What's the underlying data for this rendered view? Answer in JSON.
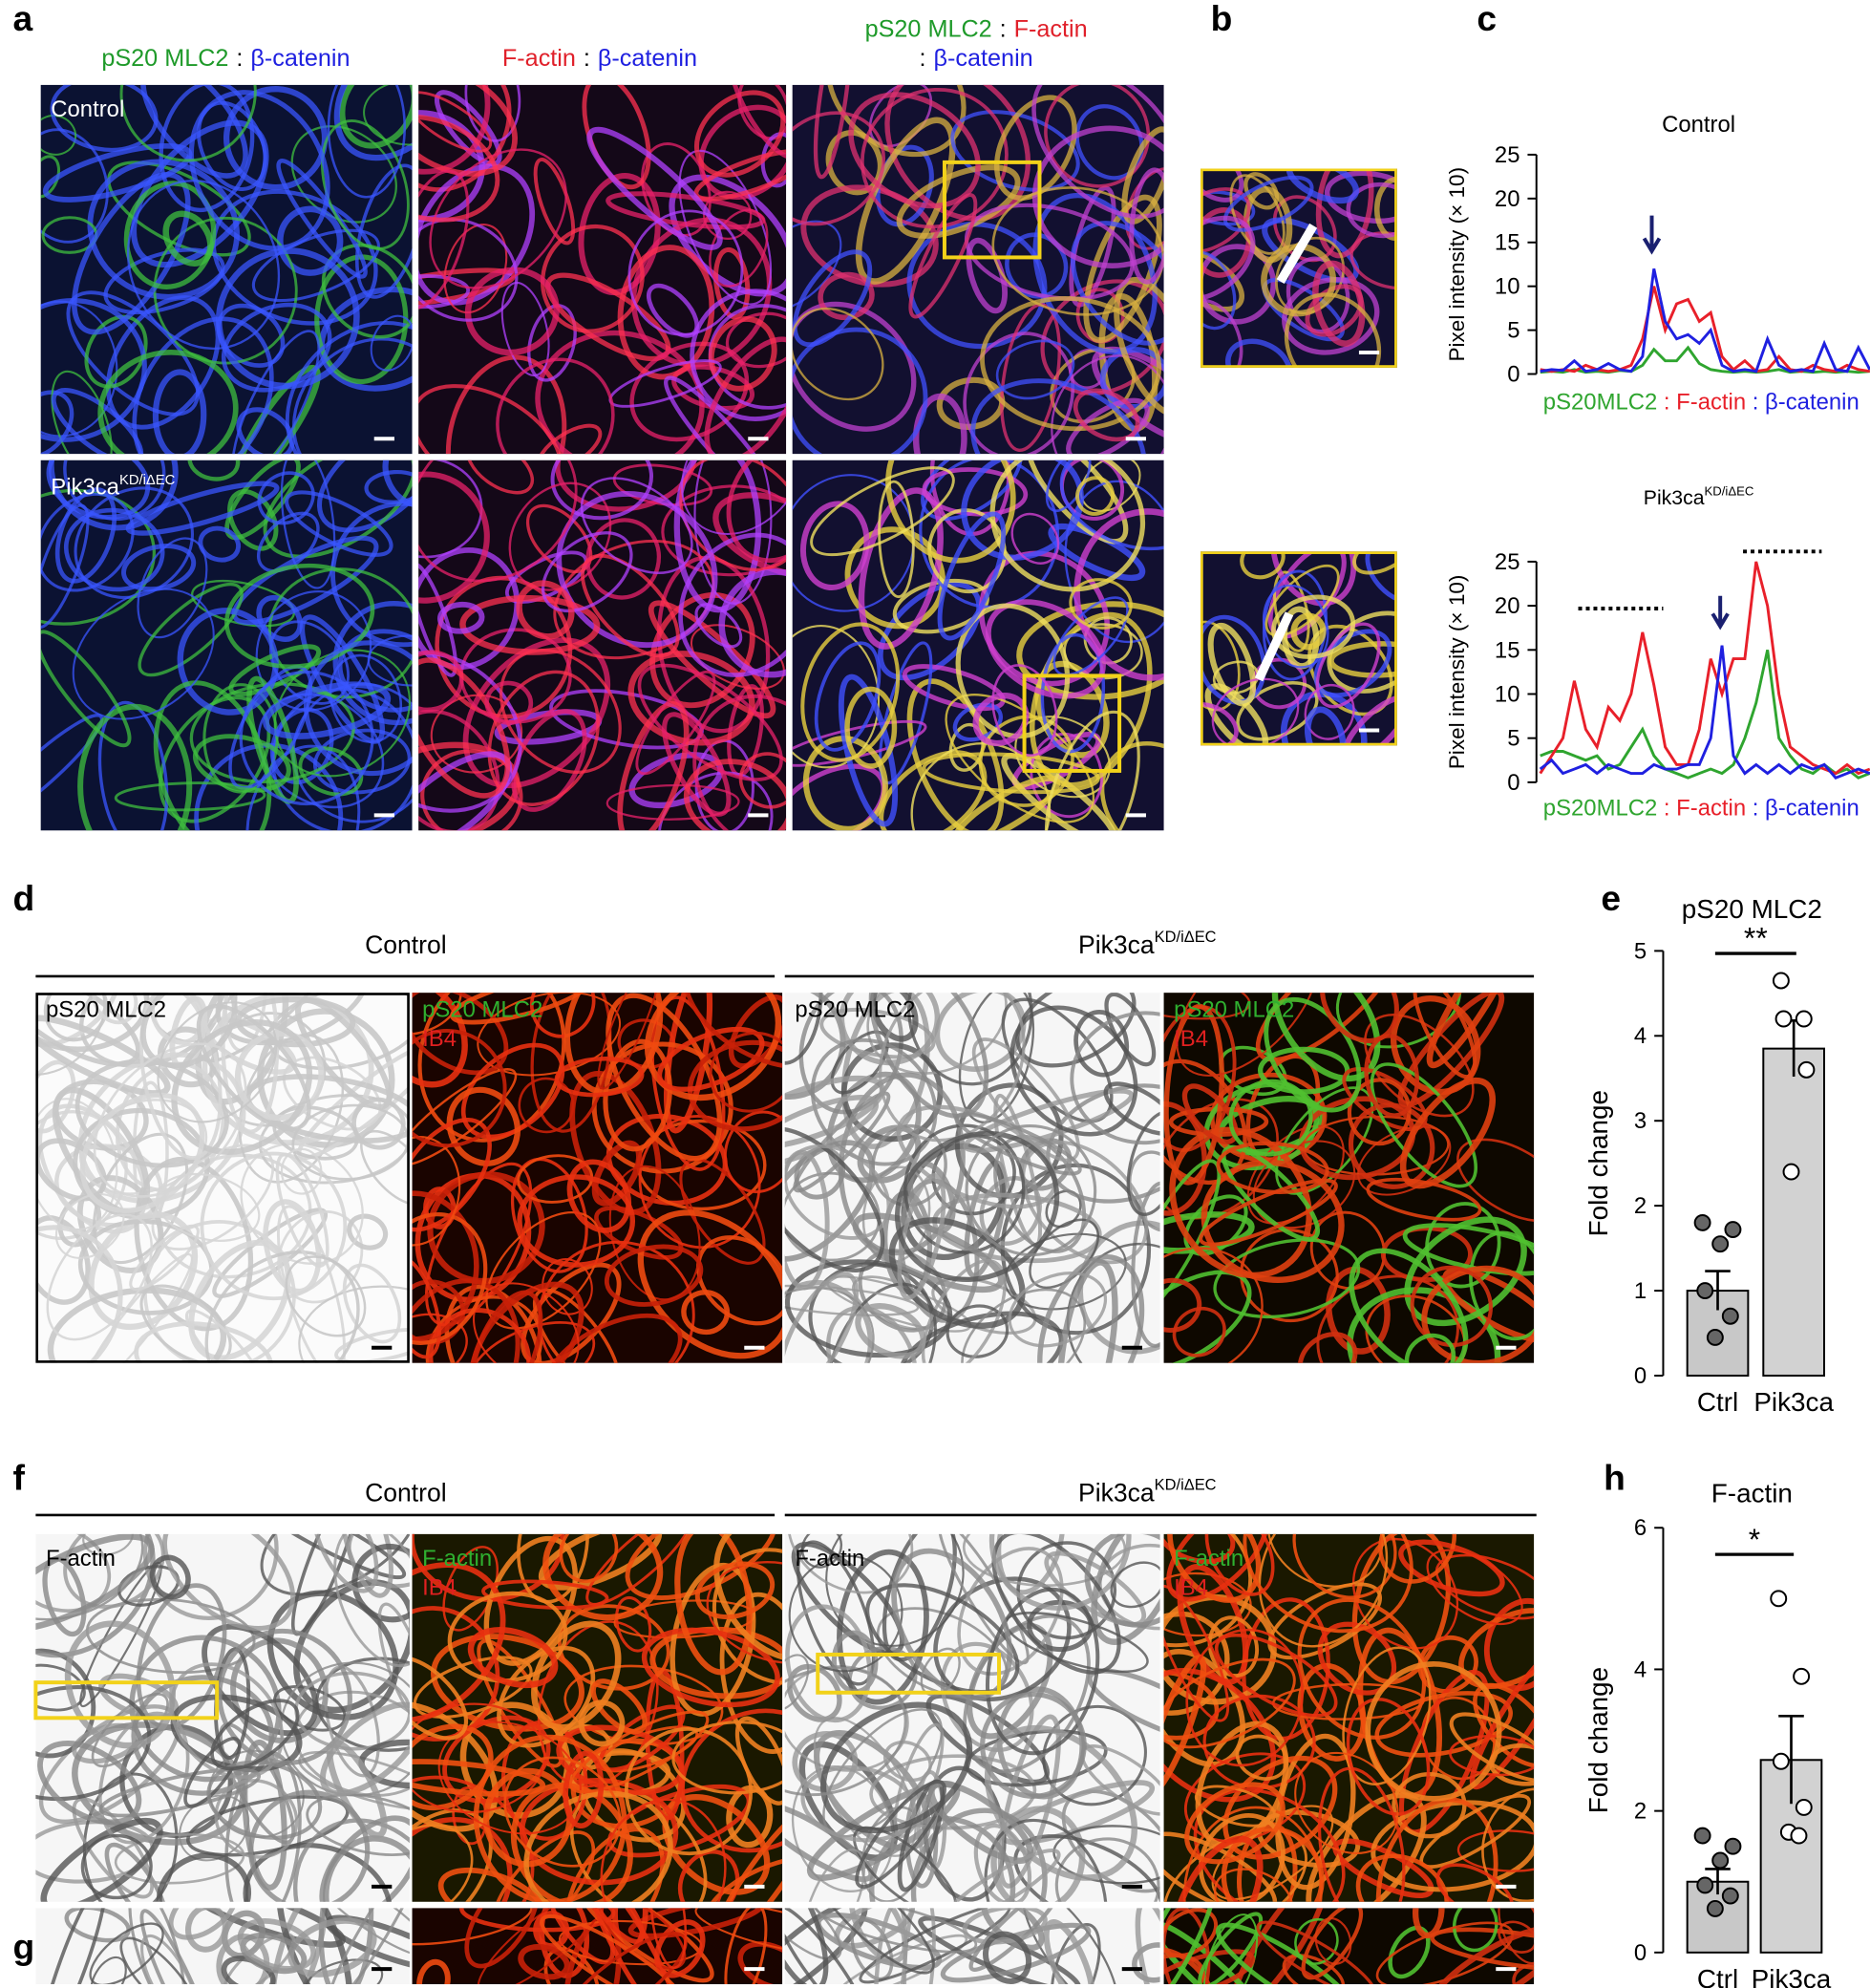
{
  "panel_labels": [
    "a",
    "b",
    "c",
    "d",
    "e",
    "f",
    "g",
    "h"
  ],
  "panel_a": {
    "headers": [
      [
        [
          {
            "text": "pS20 MLC2",
            "color": "#1f9a2a"
          },
          {
            "text": ":",
            "color": "#000000"
          },
          {
            "text": "β-catenin",
            "color": "#1f20e0"
          }
        ]
      ],
      [
        [
          {
            "text": "F-actin",
            "color": "#e0202a"
          },
          {
            "text": ":",
            "color": "#000000"
          },
          {
            "text": "β-catenin",
            "color": "#1f20e0"
          }
        ]
      ],
      [
        [
          {
            "text": "pS20 MLC2",
            "color": "#1f9a2a"
          },
          {
            "text": ":",
            "color": "#000000"
          },
          {
            "text": "F-actin",
            "color": "#e0202a"
          }
        ],
        [
          {
            "text": ":",
            "color": "#000000"
          },
          {
            "text": "β-catenin",
            "color": "#1f20e0"
          }
        ]
      ]
    ],
    "row_labels": [
      "Control",
      {
        "base": "Pik3ca",
        "sup": "KD/iΔEC"
      }
    ]
  },
  "panel_d": {
    "groups": [
      "Control",
      {
        "base": "Pik3ca",
        "sup": "KD/iΔEC"
      }
    ],
    "image_labels": [
      [
        {
          "text": "pS20 MLC2",
          "color": "#000000"
        }
      ],
      [
        {
          "text": "pS20 MLC2",
          "color": "#2fb02f"
        },
        {
          "text": "IB4",
          "color": "#e02020"
        }
      ],
      [
        {
          "text": "pS20 MLC2",
          "color": "#000000"
        }
      ],
      [
        {
          "text": "pS20 MLC2",
          "color": "#2fb02f"
        },
        {
          "text": "IB4",
          "color": "#e02020"
        }
      ]
    ]
  },
  "panel_f": {
    "groups": [
      "Control",
      {
        "base": "Pik3ca",
        "sup": "KD/iΔEC"
      }
    ],
    "image_labels": [
      [
        {
          "text": "F-actin",
          "color": "#000000"
        }
      ],
      [
        {
          "text": "F-actin",
          "color": "#2fb02f"
        },
        {
          "text": "IB4",
          "color": "#e02020"
        }
      ],
      [
        {
          "text": "F-actin",
          "color": "#000000"
        }
      ],
      [
        {
          "text": "F-actin",
          "color": "#2fb02f"
        },
        {
          "text": "IB4",
          "color": "#e02020"
        }
      ]
    ]
  },
  "chart_data": [
    {
      "type": "line",
      "title": "Control",
      "ylabel": "Pixel intensity (× 10)",
      "legend_separator": ":",
      "x": [
        0,
        1,
        2,
        3,
        4,
        5,
        6,
        7,
        8,
        9,
        10,
        11,
        12,
        13,
        14,
        15,
        16,
        17,
        18,
        19,
        20,
        21,
        22,
        23,
        24,
        25,
        26,
        27,
        28,
        29
      ],
      "xlim": [
        0,
        29
      ],
      "ylim": [
        0,
        25
      ],
      "yticks": [
        0,
        5,
        10,
        15,
        20,
        25
      ],
      "series": [
        {
          "name": "pS20MLC2",
          "color": "#2fa52f",
          "values": [
            0.2,
            0.3,
            0.2,
            0.5,
            0.2,
            0.3,
            0.2,
            0.4,
            0.3,
            1,
            2.8,
            1.5,
            1.5,
            3,
            1.2,
            0.5,
            0.3,
            0.2,
            0.3,
            0.2,
            0.3,
            0.5,
            0.2,
            0.3,
            0.2,
            0.3,
            0.2,
            0.3,
            0.2,
            0.3
          ]
        },
        {
          "name": "F-actin",
          "color": "#e8202a",
          "values": [
            0.5,
            0.3,
            0.5,
            0.3,
            1,
            0.5,
            0.3,
            0.5,
            1,
            4,
            10,
            5,
            8,
            8.5,
            6,
            7,
            2,
            0.5,
            1.5,
            0.3,
            0.5,
            2,
            0.5,
            0.3,
            1,
            0.5,
            0.3,
            1,
            0.5,
            0.3
          ]
        },
        {
          "name": "β-catenin",
          "color": "#1f20e0",
          "values": [
            0.3,
            0.5,
            0.4,
            1.5,
            0.3,
            0.5,
            1.2,
            0.5,
            0.3,
            2,
            12,
            6,
            4,
            4.5,
            3.5,
            5,
            1,
            0.3,
            0.5,
            0.3,
            4,
            1,
            0.3,
            0.5,
            0.3,
            3.5,
            0.5,
            0.3,
            3,
            0.5
          ]
        }
      ]
    },
    {
      "type": "line",
      "title": {
        "base": "Pik3ca",
        "sup": "KD/iΔEC"
      },
      "ylabel": "Pixel intensity (× 10)",
      "legend_separator": ":",
      "x": [
        0,
        1,
        2,
        3,
        4,
        5,
        6,
        7,
        8,
        9,
        10,
        11,
        12,
        13,
        14,
        15,
        16,
        17,
        18,
        19,
        20,
        21,
        22,
        23,
        24,
        25,
        26,
        27,
        28,
        29
      ],
      "xlim": [
        0,
        29
      ],
      "ylim": [
        0,
        25
      ],
      "yticks": [
        0,
        5,
        10,
        15,
        20,
        25
      ],
      "series": [
        {
          "name": "pS20MLC2",
          "color": "#2fa52f",
          "values": [
            3,
            3.5,
            3.5,
            3,
            2.5,
            3,
            1.5,
            2,
            4,
            6,
            3,
            1.5,
            1,
            0.5,
            1,
            1.5,
            1,
            2,
            5,
            9,
            15,
            5,
            3,
            1.5,
            1,
            2,
            1,
            1.5,
            0.5,
            1
          ]
        },
        {
          "name": "F-actin",
          "color": "#e8202a",
          "values": [
            1,
            3,
            5,
            11.5,
            6,
            4,
            8.5,
            7,
            10,
            17,
            11,
            4,
            2,
            2,
            6,
            14,
            10,
            14,
            14,
            25,
            20,
            10,
            4,
            3,
            2,
            1.5,
            1,
            2,
            1,
            1.5
          ]
        },
        {
          "name": "β-catenin",
          "color": "#1f20e0",
          "values": [
            1.5,
            2.5,
            1,
            1.5,
            2,
            1,
            2,
            1.5,
            1,
            1,
            2,
            1.5,
            1.5,
            2,
            2,
            5,
            15.5,
            3,
            1,
            2,
            1,
            2,
            1,
            2,
            1.5,
            2,
            0.5,
            1,
            1.5,
            1
          ]
        }
      ]
    },
    {
      "type": "bar",
      "title": "pS20 MLC2",
      "ylabel": "Fold change",
      "categories": [
        "Ctrl",
        "Pik3ca"
      ],
      "values": [
        1.0,
        3.85
      ],
      "errors": [
        0.23,
        0.33
      ],
      "colors": [
        "#c8c8c8",
        "#d2d2d2"
      ],
      "point_colors": [
        "#666666",
        "#ffffff"
      ],
      "points": [
        [
          1.8,
          1.72,
          1.55,
          1.0,
          0.7,
          0.45
        ],
        [
          4.65,
          4.2,
          4.2,
          3.6,
          2.4
        ]
      ],
      "significance": "**",
      "ylim": [
        0,
        5
      ],
      "yticks": [
        0,
        1,
        2,
        3,
        4,
        5
      ]
    },
    {
      "type": "bar",
      "title": "F-actin",
      "ylabel": "Fold change",
      "categories": [
        "Ctrl",
        "Pik3ca"
      ],
      "values": [
        1.0,
        2.72
      ],
      "errors": [
        0.18,
        0.62
      ],
      "colors": [
        "#c8c8c8",
        "#d2d2d2"
      ],
      "point_colors": [
        "#666666",
        "#ffffff"
      ],
      "points": [
        [
          1.65,
          1.5,
          1.3,
          0.95,
          0.8,
          0.62
        ],
        [
          5.0,
          3.9,
          2.7,
          2.05,
          1.7,
          1.65
        ]
      ],
      "significance": "*",
      "ylim": [
        0,
        6
      ],
      "yticks": [
        0,
        2,
        4,
        6
      ]
    }
  ]
}
